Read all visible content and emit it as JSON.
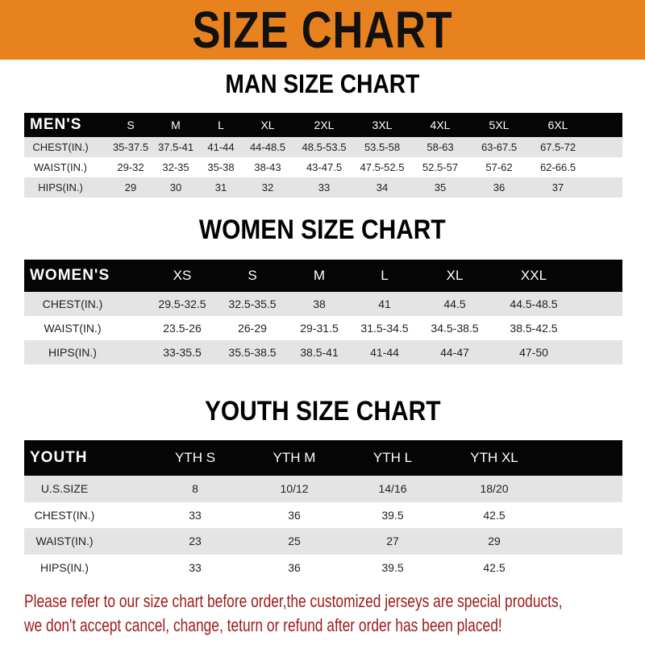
{
  "title": "SIZE CHART",
  "colors": {
    "banner": "#e8821e",
    "header_bg": "#050505",
    "stripe": "#e4e4e4",
    "note": "#9e1a1a"
  },
  "men": {
    "title": "MAN SIZE CHART",
    "header": "MEN'S",
    "sizes": [
      "S",
      "M",
      "L",
      "XL",
      "2XL",
      "3XL",
      "4XL",
      "5XL",
      "6XL"
    ],
    "rows": [
      {
        "label": "CHEST(IN.)",
        "values": [
          "35-37.5",
          "37.5-41",
          "41-44",
          "44-48.5",
          "48.5-53.5",
          "53.5-58",
          "58-63",
          "63-67.5",
          "67.5-72"
        ]
      },
      {
        "label": "WAIST(IN.)",
        "values": [
          "29-32",
          "32-35",
          "35-38",
          "38-43",
          "43-47.5",
          "47.5-52.5",
          "52.5-57",
          "57-62",
          "62-66.5"
        ]
      },
      {
        "label": "HIPS(IN.)",
        "values": [
          "29",
          "30",
          "31",
          "32",
          "33",
          "34",
          "35",
          "36",
          "37"
        ]
      }
    ]
  },
  "women": {
    "title": "WOMEN SIZE CHART",
    "header": "WOMEN'S",
    "sizes": [
      "XS",
      "S",
      "M",
      "L",
      "XL",
      "XXL"
    ],
    "rows": [
      {
        "label": "CHEST(IN.)",
        "values": [
          "29.5-32.5",
          "32.5-35.5",
          "38",
          "41",
          "44.5",
          "44.5-48.5"
        ]
      },
      {
        "label": "WAIST(IN.)",
        "values": [
          "23.5-26",
          "26-29",
          "29-31.5",
          "31.5-34.5",
          "34.5-38.5",
          "38.5-42.5"
        ]
      },
      {
        "label": "HIPS(IN.)",
        "values": [
          "33-35.5",
          "35.5-38.5",
          "38.5-41",
          "41-44",
          "44-47",
          "47-50"
        ]
      }
    ]
  },
  "youth": {
    "title": "YOUTH SIZE CHART",
    "header": "YOUTH",
    "sizes": [
      "YTH S",
      "YTH M",
      "YTH L",
      "YTH XL"
    ],
    "rows": [
      {
        "label": "U.S.SIZE",
        "values": [
          "8",
          "10/12",
          "14/16",
          "18/20"
        ]
      },
      {
        "label": "CHEST(IN.)",
        "values": [
          "33",
          "36",
          "39.5",
          "42.5"
        ]
      },
      {
        "label": "WAIST(IN.)",
        "values": [
          "23",
          "25",
          "27",
          "29"
        ]
      },
      {
        "label": "HIPS(IN.)",
        "values": [
          "33",
          "36",
          "39.5",
          "42.5"
        ]
      }
    ]
  },
  "note": {
    "line1": "Please refer to our size chart before order,the customized jerseys are special products,",
    "line2": "we don't accept cancel, change, teturn or refund after order has been placed!"
  }
}
